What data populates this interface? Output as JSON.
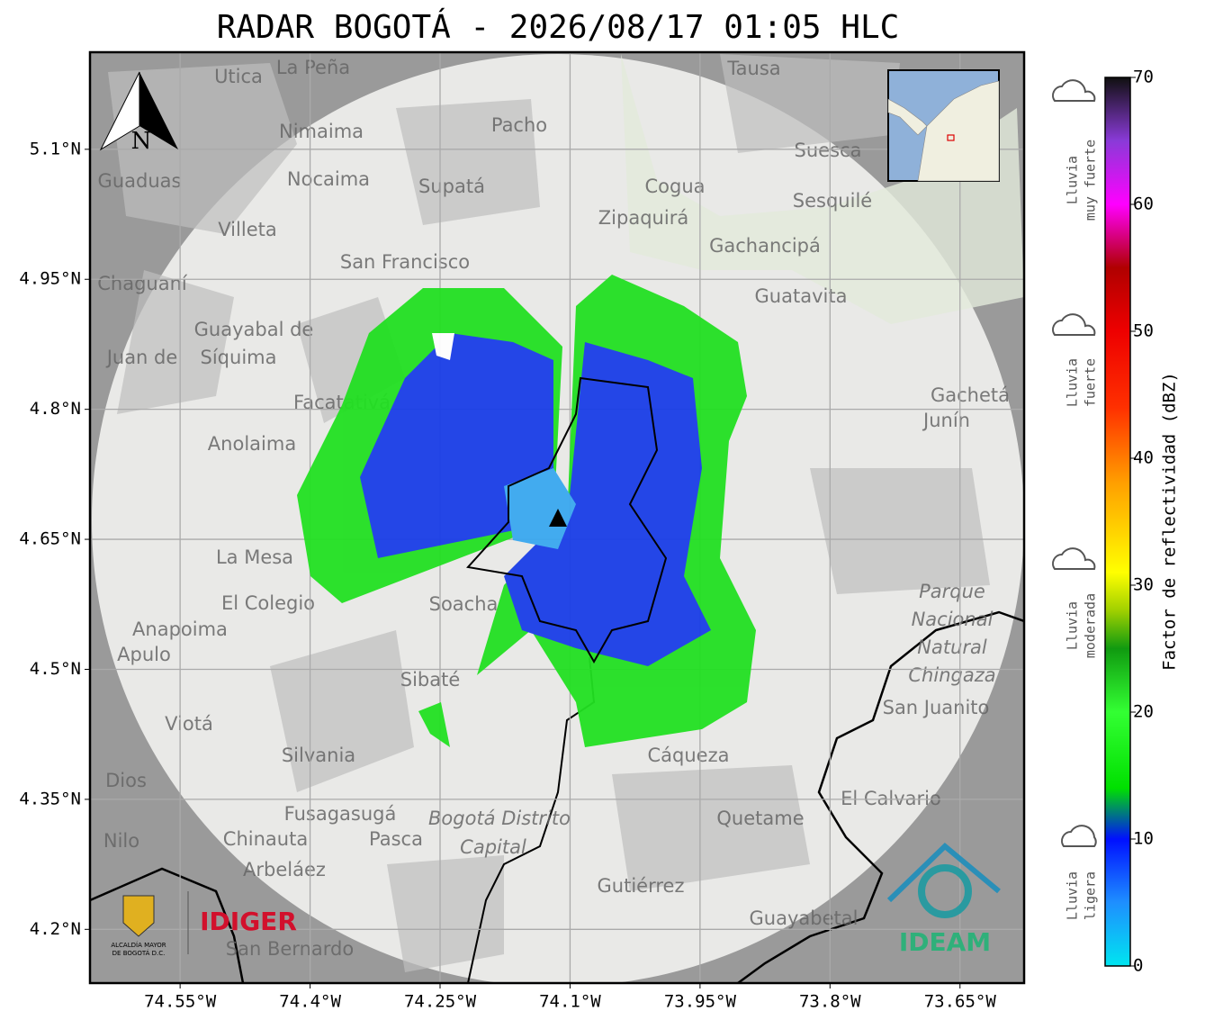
{
  "title": "RADAR BOGOTÁ - 2026/08/17 01:05 HLC",
  "map": {
    "xlim": [
      -74.654,
      -73.576
    ],
    "ylim": [
      4.138,
      5.212
    ],
    "xticks": [
      {
        "value": -74.55,
        "label": "74.55°W"
      },
      {
        "value": -74.4,
        "label": "74.4°W"
      },
      {
        "value": -74.25,
        "label": "74.25°W"
      },
      {
        "value": -74.1,
        "label": "74.1°W"
      },
      {
        "value": -73.95,
        "label": "73.95°W"
      },
      {
        "value": -73.8,
        "label": "73.8°W"
      },
      {
        "value": -73.65,
        "label": "73.65°W"
      }
    ],
    "yticks": [
      {
        "value": 5.1,
        "label": "5.1°N"
      },
      {
        "value": 4.95,
        "label": "4.95°N"
      },
      {
        "value": 4.8,
        "label": "4.8°N"
      },
      {
        "value": 4.65,
        "label": "4.65°N"
      },
      {
        "value": 4.5,
        "label": "4.5°N"
      },
      {
        "value": 4.35,
        "label": "4.35°N"
      },
      {
        "value": 4.2,
        "label": "4.2°N"
      }
    ],
    "grid": true,
    "north": "N"
  },
  "places": [
    "La Peña",
    "Utica",
    "Tausa",
    "Pacho",
    "Nimaima",
    "Suesca",
    "Guaduas",
    "Nocaima",
    "Supatá",
    "Cogua",
    "Sesquilé",
    "Zipaquirá",
    "Villeta",
    "Gachancipá",
    "San Francisco",
    "Chaguaní",
    "Guatavita",
    "Guayabal de",
    "Síquima",
    "Juan de",
    "Facatativá",
    "Gachetá",
    "Junín",
    "Anolaima",
    "La Mesa",
    "El Colegio",
    "Soacha",
    "Parque",
    "Nacional",
    "Natural",
    "Chingaza",
    "Anapoima",
    "Apulo",
    "Sibaté",
    "San Juanito",
    "Viotá",
    "Silvania",
    "Cáqueza",
    "Dios",
    "El Calvario",
    "Fusagasugá",
    "Bogotá Distrito",
    "Capital",
    "Quetame",
    "Nilo",
    "Chinauta",
    "Pasca",
    "Arbeláez",
    "Gutiérrez",
    "Guayabetal",
    "San Bernardo"
  ],
  "colorbar": {
    "label": "Factor de reflectividad (dBZ)",
    "lim": [
      0,
      70
    ],
    "ticks": [
      0,
      10,
      20,
      30,
      40,
      50,
      60,
      70
    ],
    "stops": [
      {
        "value": 0,
        "color": "#00e5f0"
      },
      {
        "value": 5,
        "color": "#1e8fff"
      },
      {
        "value": 10,
        "color": "#0010ff"
      },
      {
        "value": 14,
        "color": "#00e000"
      },
      {
        "value": 20,
        "color": "#33ff33"
      },
      {
        "value": 25,
        "color": "#109a10"
      },
      {
        "value": 28,
        "color": "#a0d000"
      },
      {
        "value": 31,
        "color": "#ffff00"
      },
      {
        "value": 38,
        "color": "#ffa000"
      },
      {
        "value": 44,
        "color": "#ff3000"
      },
      {
        "value": 50,
        "color": "#ee0000"
      },
      {
        "value": 55,
        "color": "#b00000"
      },
      {
        "value": 60,
        "color": "#ff00ff"
      },
      {
        "value": 65,
        "color": "#8a3ad8"
      },
      {
        "value": 70,
        "color": "#101010"
      }
    ]
  },
  "categories": [
    [
      "Lluvia",
      "ligera"
    ],
    [
      "Lluvia",
      "moderada"
    ],
    [
      "Lluvia",
      "fuerte"
    ],
    [
      "Lluvia",
      "muy fuerte"
    ]
  ],
  "logos": {
    "alcaldia": [
      "ALCALDÍA MAYOR",
      "DE BOGOTÁ D.C."
    ],
    "idiger": "IDIGER",
    "ideam": "IDEAM"
  }
}
